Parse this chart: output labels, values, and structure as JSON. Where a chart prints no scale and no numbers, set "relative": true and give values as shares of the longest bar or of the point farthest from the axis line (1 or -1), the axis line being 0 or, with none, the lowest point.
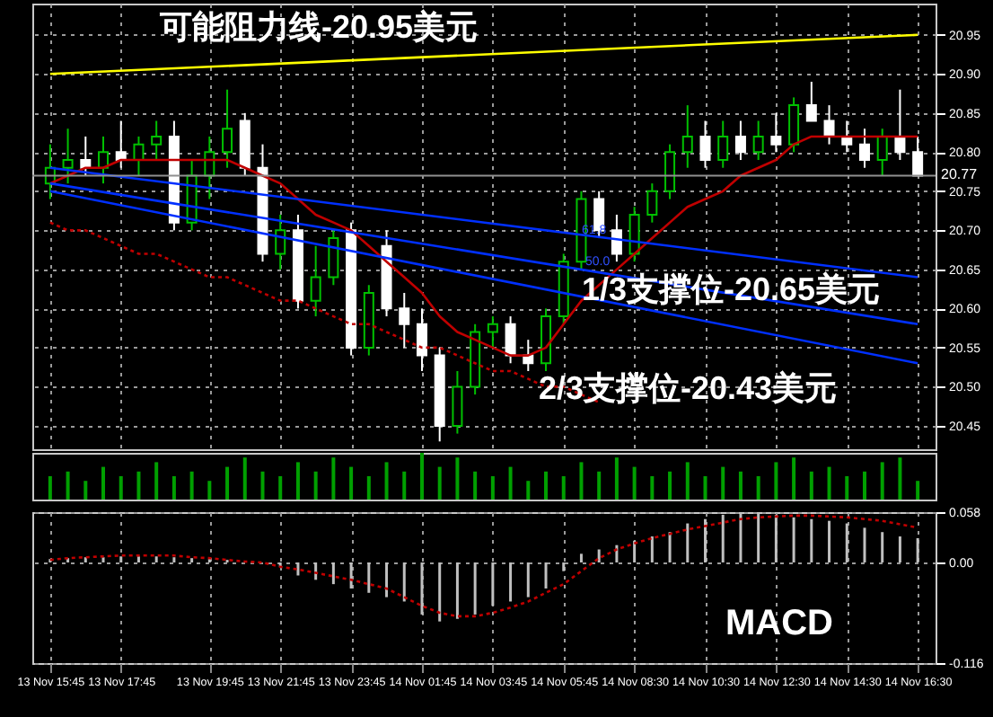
{
  "chart_data": [
    {
      "type": "candlestick",
      "categories": [
        "13 Nov 15:45",
        null,
        null,
        null,
        "13 Nov 17:45",
        null,
        null,
        null,
        null,
        "13 Nov 19:45",
        null,
        null,
        null,
        "13 Nov 21:45",
        null,
        null,
        null,
        "13 Nov 23:45",
        null,
        null,
        null,
        "14 Nov 01:45",
        null,
        null,
        null,
        "14 Nov 03:45",
        null,
        null,
        null,
        "14 Nov 05:45",
        null,
        null,
        null,
        "14 Nov 08:30",
        null,
        null,
        null,
        "14 Nov 10:30",
        null,
        null,
        null,
        "14 Nov 12:30",
        null,
        null,
        null,
        "14 Nov 14:30",
        null,
        null,
        null,
        "14 Nov 16:30"
      ],
      "ohlc": [
        [
          20.76,
          20.81,
          20.74,
          20.78
        ],
        [
          20.78,
          20.83,
          20.76,
          20.79
        ],
        [
          20.79,
          20.82,
          20.77,
          20.78
        ],
        [
          20.78,
          20.82,
          20.76,
          20.8
        ],
        [
          20.8,
          20.84,
          20.78,
          20.79
        ],
        [
          20.79,
          20.82,
          20.77,
          20.81
        ],
        [
          20.81,
          20.84,
          20.79,
          20.82
        ],
        [
          20.82,
          20.84,
          20.7,
          20.71
        ],
        [
          20.71,
          20.79,
          20.7,
          20.77
        ],
        [
          20.77,
          20.82,
          20.74,
          20.8
        ],
        [
          20.8,
          20.88,
          20.78,
          20.83
        ],
        [
          20.84,
          20.85,
          20.77,
          20.78
        ],
        [
          20.78,
          20.81,
          20.66,
          20.67
        ],
        [
          20.67,
          20.72,
          20.65,
          20.7
        ],
        [
          20.7,
          20.72,
          20.6,
          20.61
        ],
        [
          20.61,
          20.68,
          20.59,
          20.64
        ],
        [
          20.64,
          20.7,
          20.63,
          20.69
        ],
        [
          20.7,
          20.71,
          20.54,
          20.55
        ],
        [
          20.55,
          20.63,
          20.54,
          20.62
        ],
        [
          20.68,
          20.7,
          20.59,
          20.6
        ],
        [
          20.6,
          20.62,
          20.55,
          20.58
        ],
        [
          20.58,
          20.6,
          20.52,
          20.54
        ],
        [
          20.54,
          20.55,
          20.43,
          20.45
        ],
        [
          20.45,
          20.52,
          20.44,
          20.5
        ],
        [
          20.5,
          20.58,
          20.49,
          20.57
        ],
        [
          20.57,
          20.59,
          20.55,
          20.58
        ],
        [
          20.58,
          20.59,
          20.53,
          20.54
        ],
        [
          20.54,
          20.56,
          20.52,
          20.53
        ],
        [
          20.53,
          20.6,
          20.52,
          20.59
        ],
        [
          20.59,
          20.67,
          20.58,
          20.66
        ],
        [
          20.66,
          20.75,
          20.65,
          20.74
        ],
        [
          20.74,
          20.75,
          20.69,
          20.7
        ],
        [
          20.7,
          20.72,
          20.66,
          20.67
        ],
        [
          20.67,
          20.73,
          20.66,
          20.72
        ],
        [
          20.72,
          20.76,
          20.71,
          20.75
        ],
        [
          20.75,
          20.81,
          20.74,
          20.8
        ],
        [
          20.8,
          20.86,
          20.78,
          20.82
        ],
        [
          20.82,
          20.84,
          20.78,
          20.79
        ],
        [
          20.79,
          20.84,
          20.78,
          20.82
        ],
        [
          20.82,
          20.84,
          20.79,
          20.8
        ],
        [
          20.8,
          20.84,
          20.79,
          20.82
        ],
        [
          20.82,
          20.85,
          20.8,
          20.81
        ],
        [
          20.81,
          20.87,
          20.8,
          20.86
        ],
        [
          20.86,
          20.89,
          20.84,
          20.84
        ],
        [
          20.84,
          20.86,
          20.81,
          20.82
        ],
        [
          20.82,
          20.84,
          20.8,
          20.81
        ],
        [
          20.81,
          20.83,
          20.78,
          20.79
        ],
        [
          20.79,
          20.83,
          20.77,
          20.82
        ],
        [
          20.82,
          20.88,
          20.79,
          20.8
        ],
        [
          20.8,
          20.82,
          20.77,
          20.77
        ]
      ],
      "colors": [
        "#00c000",
        "#00c000",
        "#ffffff",
        "#00c000",
        "#ffffff",
        "#00c000",
        "#00c000",
        "#ffffff",
        "#00c000",
        "#00c000",
        "#00c000",
        "#ffffff",
        "#ffffff",
        "#00c000",
        "#ffffff",
        "#00c000",
        "#00c000",
        "#ffffff",
        "#00c000",
        "#ffffff",
        "#ffffff",
        "#ffffff",
        "#ffffff",
        "#00c000",
        "#00c000",
        "#00c000",
        "#ffffff",
        "#ffffff",
        "#00c000",
        "#00c000",
        "#00c000",
        "#ffffff",
        "#ffffff",
        "#00c000",
        "#00c000",
        "#00c000",
        "#00c000",
        "#ffffff",
        "#00c000",
        "#ffffff",
        "#00c000",
        "#ffffff",
        "#00c000",
        "#ffffff",
        "#ffffff",
        "#ffffff",
        "#ffffff",
        "#00c000",
        "#ffffff",
        "#ffffff"
      ],
      "series": [
        {
          "type": "line",
          "color": "#c00000",
          "line_style": "solid",
          "values": [
            20.76,
            20.77,
            20.78,
            20.78,
            20.79,
            20.79,
            20.79,
            20.79,
            20.79,
            20.79,
            20.79,
            20.78,
            20.77,
            20.76,
            20.74,
            20.72,
            20.71,
            20.7,
            20.68,
            20.66,
            20.64,
            20.62,
            20.59,
            20.57,
            20.56,
            20.55,
            20.54,
            20.54,
            20.55,
            20.58,
            20.61,
            20.63,
            20.65,
            20.67,
            20.69,
            20.71,
            20.73,
            20.74,
            20.75,
            20.77,
            20.78,
            20.79,
            20.81,
            20.82,
            20.82,
            20.82,
            20.82,
            20.82,
            20.82,
            20.82
          ]
        },
        {
          "type": "line",
          "color": "#c00000",
          "line_style": "dotted",
          "values": [
            20.71,
            20.7,
            20.7,
            20.69,
            20.68,
            20.67,
            20.67,
            20.66,
            20.65,
            20.64,
            20.64,
            20.63,
            20.62,
            20.61,
            20.61,
            20.6,
            20.59,
            20.58,
            20.58,
            20.57,
            20.56,
            20.55,
            20.55,
            20.54,
            20.53,
            20.52,
            20.52,
            20.51,
            20.5,
            20.5,
            20.49,
            20.48,
            null,
            null,
            null,
            null,
            null,
            null,
            null,
            null,
            null,
            null,
            null,
            null,
            null,
            null,
            null,
            null,
            null,
            null
          ]
        },
        {
          "type": "line",
          "color": "#ffff00",
          "line_style": "solid",
          "x": [
            "13 Nov 15:45",
            "14 Nov 16:30"
          ],
          "values": [
            20.9,
            20.95
          ]
        },
        {
          "type": "line",
          "color": "#0030ff",
          "line_style": "solid",
          "x": [
            "13 Nov 15:45",
            "14 Nov 16:30"
          ],
          "values": [
            20.78,
            20.64
          ]
        },
        {
          "type": "line",
          "color": "#0030ff",
          "line_style": "solid",
          "x": [
            "13 Nov 15:45",
            "14 Nov 16:30"
          ],
          "values": [
            20.76,
            20.58
          ]
        },
        {
          "type": "line",
          "color": "#0030ff",
          "line_style": "solid",
          "x": [
            "13 Nov 15:45",
            "14 Nov 16:30"
          ],
          "values": [
            20.75,
            20.53
          ]
        }
      ],
      "ylim": [
        20.42,
        20.99
      ],
      "yticks": [
        20.45,
        {
          "value": 20.5,
          "label": "20.50"
        },
        20.55,
        {
          "value": 20.6,
          "label": "20.60"
        },
        20.65,
        {
          "value": 20.7,
          "label": "20.70"
        },
        20.75,
        {
          "value": 20.8,
          "label": "20.80"
        },
        20.85,
        {
          "value": 20.9,
          "label": "20.90"
        },
        20.95
      ],
      "ref_lines": [
        {
          "axis": "y",
          "value": 20.77,
          "label": "20.77",
          "color": "#909090"
        }
      ],
      "annotations": [
        "可能阻力线-20.95美元",
        "1/3支撑位-20.65美元",
        "2/3支撑位-20.43美元",
        {
          "text": "61.8",
          "y": 20.7
        },
        {
          "text": "50.0",
          "y": 20.66
        }
      ],
      "grid": true,
      "tick_labels": "y"
    },
    {
      "type": "bar",
      "relative": true,
      "tick_labels": false,
      "color": "#00a000",
      "categories": [
        "13 Nov 15:45",
        null,
        null,
        null,
        "13 Nov 17:45",
        null,
        null,
        null,
        null,
        "13 Nov 19:45",
        null,
        null,
        null,
        "13 Nov 21:45",
        null,
        null,
        null,
        "13 Nov 23:45",
        null,
        null,
        null,
        "14 Nov 01:45",
        null,
        null,
        null,
        "14 Nov 03:45",
        null,
        null,
        null,
        "14 Nov 05:45",
        null,
        null,
        null,
        "14 Nov 08:30",
        null,
        null,
        null,
        "14 Nov 10:30",
        null,
        null,
        null,
        "14 Nov 12:30",
        null,
        null,
        null,
        "14 Nov 14:30",
        null,
        null,
        null,
        "14 Nov 16:30"
      ],
      "values": [
        0.5,
        0.6,
        0.4,
        0.7,
        0.5,
        0.6,
        0.8,
        0.5,
        0.6,
        0.4,
        0.7,
        0.9,
        0.6,
        0.5,
        0.8,
        0.6,
        0.9,
        0.7,
        0.5,
        0.8,
        0.6,
        1.0,
        0.7,
        0.9,
        0.6,
        0.5,
        0.7,
        0.4,
        0.6,
        0.5,
        0.8,
        0.6,
        0.9,
        0.7,
        0.5,
        0.6,
        0.8,
        0.5,
        0.7,
        0.6,
        0.5,
        0.8,
        0.9,
        0.6,
        0.7,
        0.5,
        0.6,
        0.8,
        0.9,
        0.4
      ]
    },
    {
      "type": "bar",
      "categories": [
        "13 Nov 15:45",
        null,
        null,
        null,
        "13 Nov 17:45",
        null,
        null,
        null,
        null,
        "13 Nov 19:45",
        null,
        null,
        null,
        "13 Nov 21:45",
        null,
        null,
        null,
        "13 Nov 23:45",
        null,
        null,
        null,
        "14 Nov 01:45",
        null,
        null,
        null,
        "14 Nov 03:45",
        null,
        null,
        null,
        "14 Nov 05:45",
        null,
        null,
        null,
        "14 Nov 08:30",
        null,
        null,
        null,
        "14 Nov 10:30",
        null,
        null,
        null,
        "14 Nov 12:30",
        null,
        null,
        null,
        "14 Nov 14:30",
        null,
        null,
        null,
        "14 Nov 16:30"
      ],
      "series": [
        {
          "type": "bar",
          "color": "#c0c0c0",
          "values": [
            0.004,
            0.005,
            0.006,
            0.006,
            0.007,
            0.007,
            0.007,
            0.006,
            0.005,
            0.004,
            0.003,
            null,
            0.0,
            -0.005,
            -0.015,
            -0.02,
            -0.025,
            -0.03,
            -0.035,
            -0.04,
            -0.045,
            -0.06,
            -0.068,
            -0.065,
            -0.06,
            -0.05,
            -0.045,
            -0.04,
            -0.03,
            -0.01,
            0.01,
            0.015,
            0.02,
            0.025,
            0.03,
            0.035,
            0.045,
            0.05,
            0.055,
            0.057,
            0.057,
            0.055,
            0.052,
            0.05,
            0.048,
            0.045,
            0.04,
            0.035,
            0.03,
            0.028
          ]
        },
        {
          "type": "line",
          "color": "#c00000",
          "line_style": "dotted",
          "values": [
            0.003,
            0.005,
            0.006,
            0.007,
            0.008,
            0.008,
            0.008,
            0.008,
            0.006,
            0.005,
            0.003,
            0.001,
            0.0,
            -0.005,
            -0.008,
            -0.012,
            -0.016,
            -0.02,
            -0.025,
            -0.03,
            -0.04,
            -0.05,
            -0.058,
            -0.062,
            -0.062,
            -0.058,
            -0.052,
            -0.045,
            -0.035,
            -0.025,
            -0.01,
            0.005,
            0.015,
            0.022,
            0.028,
            0.033,
            0.038,
            0.042,
            0.046,
            0.05,
            0.052,
            0.053,
            0.054,
            0.054,
            0.053,
            0.052,
            0.05,
            0.048,
            0.044,
            0.04
          ]
        }
      ],
      "ylim": [
        -0.116,
        0.058
      ],
      "yticks": [
        -0.116,
        {
          "value": 0,
          "label": "0.00"
        },
        0.058
      ],
      "annotations": [
        "MACD"
      ],
      "grid": true
    }
  ]
}
